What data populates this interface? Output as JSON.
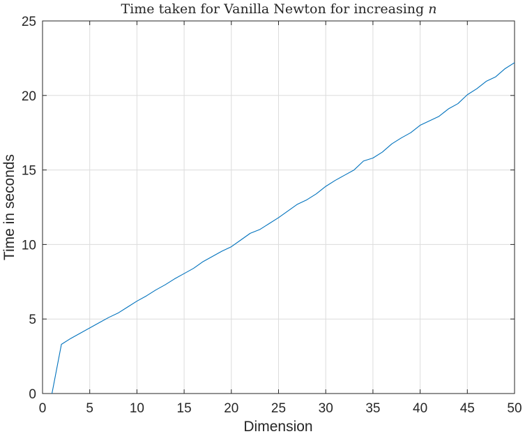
{
  "chart_data": {
    "type": "line",
    "title": "Time taken for Vanilla Newton for increasing",
    "title_variable": "n",
    "xlabel": "Dimension",
    "ylabel": "Time in seconds",
    "xlim": [
      0,
      50
    ],
    "ylim": [
      0,
      25
    ],
    "xticks": [
      0,
      5,
      10,
      15,
      20,
      25,
      30,
      35,
      40,
      45,
      50
    ],
    "yticks": [
      0,
      5,
      10,
      15,
      20,
      25
    ],
    "grid": true,
    "series": [
      {
        "color": "#0072BD",
        "x": [
          1,
          2,
          3,
          4,
          5,
          6,
          7,
          8,
          9,
          10,
          11,
          12,
          13,
          14,
          15,
          16,
          17,
          18,
          19,
          20,
          21,
          22,
          23,
          24,
          25,
          26,
          27,
          28,
          29,
          30,
          31,
          32,
          33,
          34,
          35,
          36,
          37,
          38,
          39,
          40,
          41,
          42,
          43,
          44,
          45,
          46,
          47,
          48,
          49,
          50
        ],
        "y": [
          0.0,
          3.3,
          3.7,
          4.05,
          4.4,
          4.75,
          5.1,
          5.4,
          5.8,
          6.2,
          6.55,
          6.95,
          7.3,
          7.7,
          8.05,
          8.4,
          8.85,
          9.2,
          9.55,
          9.85,
          10.3,
          10.75,
          11.0,
          11.4,
          11.8,
          12.25,
          12.7,
          13.0,
          13.4,
          13.9,
          14.3,
          14.65,
          15.0,
          15.6,
          15.8,
          16.2,
          16.75,
          17.15,
          17.5,
          18.0,
          18.3,
          18.6,
          19.1,
          19.45,
          20.05,
          20.45,
          20.95,
          21.25,
          21.8,
          22.2
        ]
      }
    ]
  }
}
